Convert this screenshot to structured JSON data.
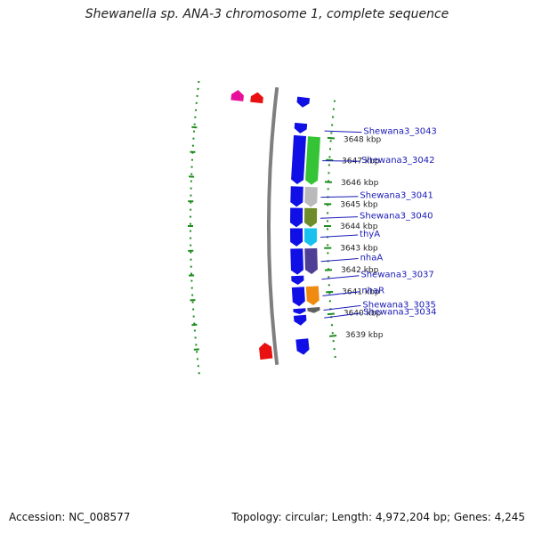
{
  "title": "Shewanella sp. ANA-3 chromosome 1, complete sequence",
  "accession": "Accession: NC_008577",
  "summary": "Topology: circular; Length: 4,972,204 bp; Genes: 4,245",
  "colors": {
    "backbone": "#7f7f7f",
    "forward_gene": "#1010e6",
    "dotted_track": "#1e8c1e",
    "label_line": "#1a1ab8"
  },
  "map": {
    "start_kbp": 3638.5,
    "end_kbp": 3649.5,
    "ticks": [
      {
        "kbp": 3648,
        "label": "3648 kbp"
      },
      {
        "kbp": 3647,
        "label": "3647 kbp"
      },
      {
        "kbp": 3646,
        "label": "3646 kbp"
      },
      {
        "kbp": 3645,
        "label": "3645 kbp"
      },
      {
        "kbp": 3644,
        "label": "3644 kbp"
      },
      {
        "kbp": 3643,
        "label": "3643 kbp"
      },
      {
        "kbp": 3642,
        "label": "3642 kbp"
      },
      {
        "kbp": 3641,
        "label": "3641 kbp"
      },
      {
        "kbp": 3640,
        "label": "3640 kbp"
      },
      {
        "kbp": 3639,
        "label": "3639 kbp"
      }
    ],
    "genes": [
      {
        "name": "",
        "start_kbp": 3649.25,
        "end_kbp": 3649.7,
        "strand": "+",
        "color": "#1010e6"
      },
      {
        "name": "",
        "start_kbp": 3649.25,
        "end_kbp": 3649.7,
        "strand": "-",
        "color": "#e8109a"
      },
      {
        "name": "",
        "start_kbp": 3649.25,
        "end_kbp": 3649.7,
        "strand": "-",
        "color": "#e81010"
      },
      {
        "name": "Shewana3_3043",
        "start_kbp": 3648.1,
        "end_kbp": 3648.55,
        "strand": "+",
        "color": "#1010e6"
      },
      {
        "name": "Shewana3_3042",
        "start_kbp": 3645.85,
        "end_kbp": 3648.0,
        "strand": "+",
        "color": "#1010e6"
      },
      {
        "name": "",
        "start_kbp": 3645.85,
        "end_kbp": 3648.0,
        "strand": "+",
        "color": "#35c435"
      },
      {
        "name": "Shewana3_3041",
        "start_kbp": 3644.85,
        "end_kbp": 3645.75,
        "strand": "+",
        "color": "#1010e6"
      },
      {
        "name": "",
        "start_kbp": 3644.85,
        "end_kbp": 3645.75,
        "strand": "+",
        "color": "#bababa"
      },
      {
        "name": "Shewana3_3040",
        "start_kbp": 3643.95,
        "end_kbp": 3644.8,
        "strand": "+",
        "color": "#1010e6"
      },
      {
        "name": "",
        "start_kbp": 3643.95,
        "end_kbp": 3644.8,
        "strand": "+",
        "color": "#6e8c2a"
      },
      {
        "name": "thyA",
        "start_kbp": 3643.1,
        "end_kbp": 3643.9,
        "strand": "+",
        "color": "#1010e6"
      },
      {
        "name": "",
        "start_kbp": 3643.1,
        "end_kbp": 3643.9,
        "strand": "+",
        "color": "#19c2ee"
      },
      {
        "name": "nhaA",
        "start_kbp": 3641.85,
        "end_kbp": 3643.0,
        "strand": "+",
        "color": "#1010e6"
      },
      {
        "name": "",
        "start_kbp": 3641.85,
        "end_kbp": 3643.0,
        "strand": "+",
        "color": "#4e3e96"
      },
      {
        "name": "Shewana3_3037",
        "start_kbp": 3641.4,
        "end_kbp": 3641.8,
        "strand": "+",
        "color": "#1010e6"
      },
      {
        "name": "nhaR",
        "start_kbp": 3640.45,
        "end_kbp": 3641.3,
        "strand": "+",
        "color": "#1010e6"
      },
      {
        "name": "",
        "start_kbp": 3640.45,
        "end_kbp": 3641.3,
        "strand": "+",
        "color": "#f08a10"
      },
      {
        "name": "Shewana3_3035",
        "start_kbp": 3640.1,
        "end_kbp": 3640.35,
        "strand": "+",
        "color": "#1010e6"
      },
      {
        "name": "",
        "start_kbp": 3640.1,
        "end_kbp": 3640.35,
        "strand": "+",
        "color": "#606060"
      },
      {
        "name": "Shewana3_3034",
        "start_kbp": 3639.6,
        "end_kbp": 3640.05,
        "strand": "+",
        "color": "#1010e6"
      },
      {
        "name": "",
        "start_kbp": 3638.3,
        "end_kbp": 3639.0,
        "strand": "+",
        "color": "#1010e6"
      },
      {
        "name": "",
        "start_kbp": 3638.3,
        "end_kbp": 3639.0,
        "strand": "-",
        "color": "#e81010"
      }
    ],
    "gene_labels": [
      {
        "text": "Shewana3_3043",
        "kbp": 3648.3
      },
      {
        "text": "Shewana3_3042",
        "kbp": 3646.95
      },
      {
        "text": "Shewana3_3041",
        "kbp": 3645.3
      },
      {
        "text": "Shewana3_3040",
        "kbp": 3644.35
      },
      {
        "text": "thyA",
        "kbp": 3643.5
      },
      {
        "text": "nhaA",
        "kbp": 3642.4
      },
      {
        "text": "Shewana3_3037",
        "kbp": 3641.6
      },
      {
        "text": "nhaR",
        "kbp": 3640.85
      },
      {
        "text": "Shewana3_3035",
        "kbp": 3640.2
      },
      {
        "text": "Shewana3_3034",
        "kbp": 3639.85
      }
    ]
  }
}
